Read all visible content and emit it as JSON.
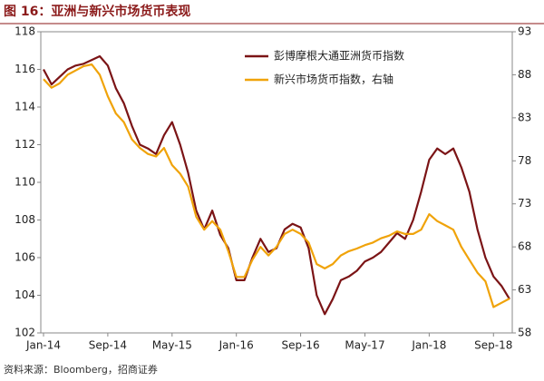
{
  "chart_data": {
    "type": "line",
    "title": "图 16：亚洲与新兴市场货币表现",
    "source": "资料来源：Bloomberg，招商证券",
    "categories": [
      "Jan-14",
      null,
      null,
      null,
      null,
      null,
      null,
      null,
      "Sep-14",
      null,
      null,
      null,
      null,
      null,
      null,
      null,
      "May-15",
      null,
      null,
      null,
      null,
      null,
      null,
      null,
      "Jan-16",
      null,
      null,
      null,
      null,
      null,
      null,
      null,
      "Sep-16",
      null,
      null,
      null,
      null,
      null,
      null,
      null,
      "May-17",
      null,
      null,
      null,
      null,
      null,
      null,
      null,
      "Jan-18",
      null,
      null,
      null,
      null,
      null,
      null,
      null,
      "Sep-18",
      null,
      null
    ],
    "series": [
      {
        "name": "彭博摩根大通亚洲货币指数",
        "color": "#7b1416",
        "axis": "y",
        "values": [
          116,
          115.2,
          115.6,
          116,
          116.2,
          116.3,
          116.5,
          116.7,
          116.2,
          115,
          114.2,
          113,
          112,
          111.8,
          111.5,
          112.5,
          113.2,
          112,
          110.5,
          108.5,
          107.5,
          108.5,
          107.2,
          106.5,
          104.8,
          104.8,
          106,
          107,
          106.3,
          106.5,
          107.5,
          107.8,
          107.6,
          106.5,
          104,
          103,
          103.8,
          104.8,
          105,
          105.3,
          105.8,
          106,
          106.3,
          106.8,
          107.3,
          107,
          108,
          109.5,
          111.2,
          111.8,
          111.5,
          111.8,
          110.8,
          109.5,
          107.5,
          106,
          105,
          104.5,
          103.8
        ]
      },
      {
        "name": "新兴市场货币指数，右轴",
        "color": "#f0a30a",
        "axis": "y2",
        "values": [
          87.5,
          86.5,
          87,
          88,
          88.5,
          89,
          89.2,
          88,
          85.5,
          83.5,
          82.5,
          80.5,
          79.5,
          78.8,
          78.5,
          79.5,
          77.5,
          76.5,
          75,
          71.5,
          70,
          71,
          70,
          67.5,
          64.5,
          64.5,
          66.5,
          68,
          67,
          68,
          69.5,
          70,
          69.5,
          68.5,
          66,
          65.5,
          66,
          67,
          67.5,
          67.8,
          68.2,
          68.5,
          69,
          69.3,
          69.8,
          69.5,
          69.5,
          70,
          71.8,
          71,
          70.5,
          70,
          68,
          66.5,
          65,
          64,
          61,
          61.5,
          62
        ]
      }
    ],
    "ylim": [
      102,
      118
    ],
    "yticks": [
      102,
      104,
      106,
      108,
      110,
      112,
      114,
      116,
      118
    ],
    "y2lim": [
      58,
      93
    ],
    "y2ticks": [
      58,
      63,
      68,
      73,
      78,
      83,
      88,
      93
    ],
    "grid": false,
    "legend": "upper right"
  }
}
